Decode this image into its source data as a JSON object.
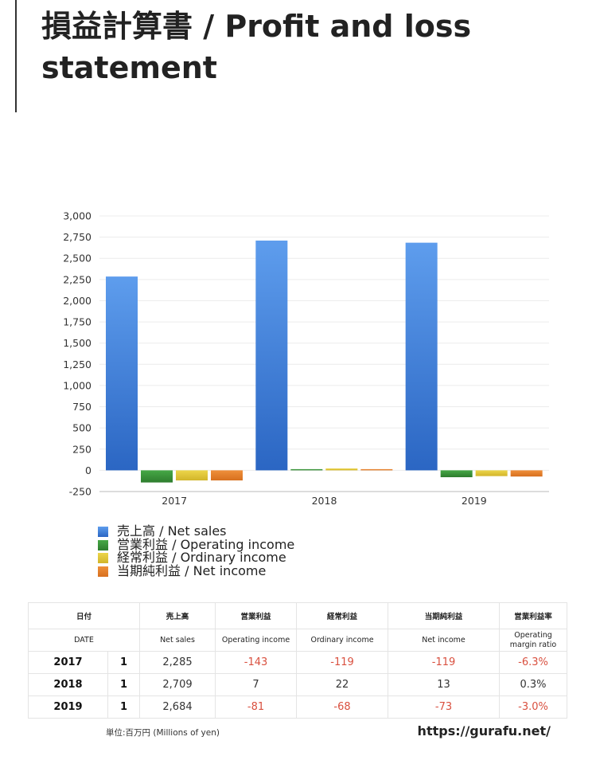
{
  "header": {
    "title": "損益計算書 / Profit and loss statement"
  },
  "chart_data": {
    "type": "bar",
    "categories": [
      "2017",
      "2018",
      "2019"
    ],
    "series": [
      {
        "name": "売上高 / Net sales",
        "values": [
          2285,
          2709,
          2684
        ],
        "color": "#5e9ded",
        "color_dark": "#2b66c3"
      },
      {
        "name": "営業利益 / Operating income",
        "values": [
          -143,
          7,
          -81
        ],
        "color": "#46a846",
        "color_dark": "#2e7d2e"
      },
      {
        "name": "経常利益 / Ordinary income",
        "values": [
          -119,
          22,
          -68
        ],
        "color": "#ecd54a",
        "color_dark": "#d2b52a"
      },
      {
        "name": "当期純利益 / Net income",
        "values": [
          -119,
          13,
          -73
        ],
        "color": "#ef8f3a",
        "color_dark": "#d7701f"
      }
    ],
    "ylim": [
      -250,
      3000
    ],
    "yticks": [
      -250,
      0,
      250,
      500,
      750,
      1000,
      1250,
      1500,
      1750,
      2000,
      2250,
      2500,
      2750,
      3000
    ],
    "ytick_labels": [
      "-250",
      "0",
      "250",
      "500",
      "750",
      "1,000",
      "1,250",
      "1,500",
      "1,750",
      "2,000",
      "2,250",
      "2,500",
      "2,750",
      "3,000"
    ],
    "grid": true,
    "legend": "bottom-left"
  },
  "table": {
    "headers_ja": [
      "日付",
      "売上高",
      "営業利益",
      "経常利益",
      "当期純利益",
      "営業利益率"
    ],
    "headers_en": [
      "DATE",
      "Net sales",
      "Operating income",
      "Ordinary income",
      "Net income",
      "Operating margin ratio"
    ],
    "rows": [
      {
        "year": "2017",
        "n": "1",
        "net_sales": "2,285",
        "operating_income": "-143",
        "ordinary_income": "-119",
        "net_income": "-119",
        "margin": "-6.3%"
      },
      {
        "year": "2018",
        "n": "1",
        "net_sales": "2,709",
        "operating_income": "7",
        "ordinary_income": "22",
        "net_income": "13",
        "margin": "0.3%"
      },
      {
        "year": "2019",
        "n": "1",
        "net_sales": "2,684",
        "operating_income": "-81",
        "ordinary_income": "-68",
        "net_income": "-73",
        "margin": "-3.0%"
      }
    ],
    "negative_color": "#d9503f"
  },
  "footer": {
    "unit_note": "単位:百万円 (Millions of yen)",
    "source_url": "https://gurafu.net/"
  }
}
